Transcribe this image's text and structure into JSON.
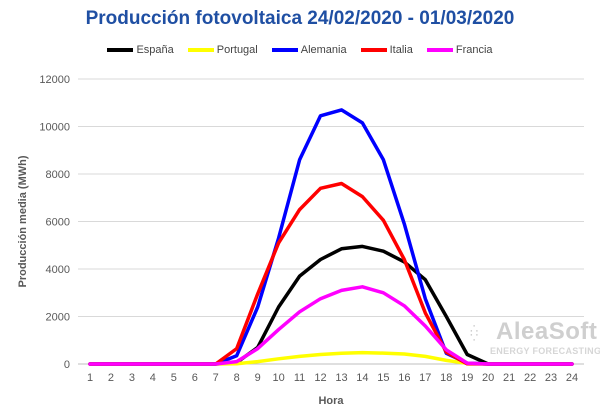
{
  "chart_data": {
    "type": "line",
    "title": "Producción fotovoltaica 24/02/2020 - 01/03/2020",
    "xlabel": "Hora",
    "ylabel": "Producción media (MWh)",
    "ylim": [
      0,
      12000
    ],
    "yticks": [
      0,
      2000,
      4000,
      6000,
      8000,
      10000,
      12000
    ],
    "grid": "horizontal",
    "legend_position": "top",
    "x": [
      1,
      2,
      3,
      4,
      5,
      6,
      7,
      8,
      9,
      10,
      11,
      12,
      13,
      14,
      15,
      16,
      17,
      18,
      19,
      20,
      21,
      22,
      23,
      24
    ],
    "series": [
      {
        "name": "España",
        "color": "#000000",
        "values": [
          0,
          0,
          0,
          0,
          0,
          0,
          0,
          60,
          700,
          2400,
          3700,
          4400,
          4850,
          4950,
          4750,
          4300,
          3550,
          2000,
          400,
          0,
          0,
          0,
          0,
          0
        ]
      },
      {
        "name": "Portugal",
        "color": "#ffff00",
        "values": [
          0,
          0,
          0,
          0,
          0,
          0,
          0,
          10,
          100,
          220,
          320,
          400,
          450,
          480,
          460,
          420,
          320,
          150,
          30,
          0,
          0,
          0,
          0,
          0
        ]
      },
      {
        "name": "Alemania",
        "color": "#0000ff",
        "values": [
          0,
          0,
          0,
          0,
          0,
          0,
          0,
          350,
          2400,
          5300,
          8600,
          10450,
          10700,
          10150,
          8600,
          5900,
          2750,
          450,
          40,
          0,
          0,
          0,
          0,
          0
        ]
      },
      {
        "name": "Italia",
        "color": "#ff0000",
        "values": [
          0,
          0,
          0,
          0,
          0,
          0,
          0,
          650,
          2950,
          5100,
          6500,
          7400,
          7600,
          7050,
          6050,
          4400,
          2150,
          500,
          10,
          0,
          0,
          0,
          0,
          0
        ]
      },
      {
        "name": "Francia",
        "color": "#ff00ff",
        "values": [
          0,
          0,
          0,
          0,
          0,
          0,
          0,
          100,
          650,
          1450,
          2200,
          2750,
          3100,
          3250,
          3000,
          2450,
          1600,
          600,
          40,
          0,
          0,
          0,
          0,
          0
        ]
      }
    ]
  },
  "watermark": {
    "main": "AleaSoft",
    "sub": "ENERGY FORECASTING"
  }
}
